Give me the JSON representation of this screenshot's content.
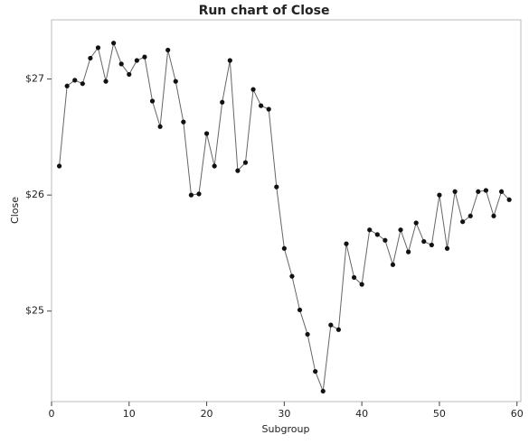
{
  "chart_data": {
    "type": "line",
    "title": "Run chart of Close",
    "x_label": "Subgroup",
    "y_label": "Close",
    "x": [
      1,
      2,
      3,
      4,
      5,
      6,
      7,
      8,
      9,
      10,
      11,
      12,
      13,
      14,
      15,
      16,
      17,
      18,
      19,
      20,
      21,
      22,
      23,
      24,
      25,
      26,
      27,
      28,
      29,
      30,
      31,
      32,
      33,
      34,
      35,
      36,
      37,
      38,
      39,
      40,
      41,
      42,
      43,
      44,
      45,
      46,
      47,
      48,
      49,
      50,
      51,
      52,
      53,
      54,
      55,
      56,
      57,
      58,
      59
    ],
    "series": [
      {
        "name": "Close",
        "color": "#666666",
        "marker_color": "#111111",
        "values": [
          26.25,
          26.94,
          26.99,
          26.96,
          27.18,
          27.27,
          26.98,
          27.31,
          27.13,
          27.04,
          27.16,
          27.19,
          26.81,
          26.59,
          27.25,
          26.98,
          26.63,
          26.0,
          26.01,
          26.53,
          26.25,
          26.8,
          27.16,
          26.21,
          26.28,
          26.91,
          26.77,
          26.74,
          26.07,
          25.54,
          25.3,
          25.01,
          24.8,
          24.48,
          24.31,
          24.88,
          24.84,
          25.58,
          25.29,
          25.23,
          25.7,
          25.66,
          25.61,
          25.4,
          25.7,
          25.51,
          25.76,
          25.6,
          25.57,
          26.0,
          25.54,
          26.03,
          25.77,
          25.82,
          26.03,
          26.04,
          25.82,
          26.03,
          25.96
        ]
      }
    ],
    "xlim": [
      0,
      60.5
    ],
    "xticks": [
      0,
      10,
      20,
      30,
      40,
      50,
      60
    ],
    "ylim": [
      24.22,
      27.51
    ],
    "yticks": [
      {
        "value": 25,
        "label": "$25"
      },
      {
        "value": 26,
        "label": "$26"
      },
      {
        "value": 27,
        "label": "$27"
      }
    ],
    "grid": false
  }
}
